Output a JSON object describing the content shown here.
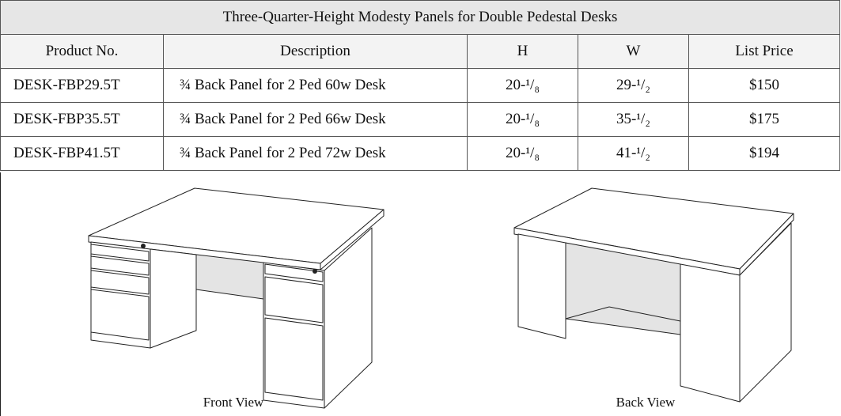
{
  "table": {
    "title": "Three-Quarter-Height Modesty Panels for Double Pedestal Desks",
    "header": [
      "Product No.",
      "Description",
      "H",
      "W",
      "List Price"
    ],
    "rows": [
      [
        "DESK-FBP29.5T",
        "¾ Back Panel for 2 Ped 60w Desk",
        "20-¹/₈",
        "29-¹/₂",
        "$150"
      ],
      [
        "DESK-FBP35.5T",
        "¾ Back Panel for 2 Ped 66w Desk",
        "20-¹/₈",
        "35-¹/₂",
        "$175"
      ],
      [
        "DESK-FBP41.5T",
        "¾ Back Panel for 2 Ped 72w Desk",
        "20-¹/₈",
        "41-¹/₂",
        "$194"
      ]
    ]
  },
  "figures": {
    "front_caption": "Front View",
    "back_caption": "Back View"
  }
}
